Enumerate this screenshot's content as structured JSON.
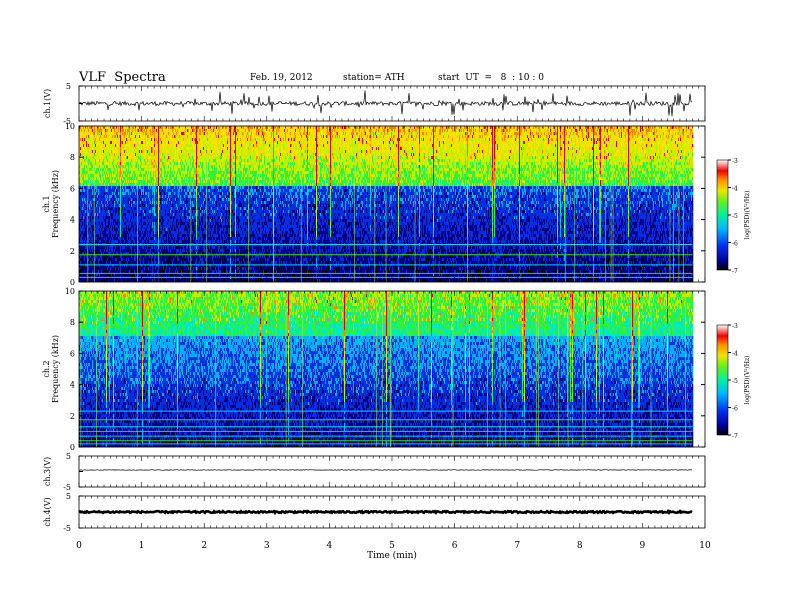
{
  "header": {
    "title": "VLF  Spectra",
    "date": "Feb. 19, 2012",
    "station": "station= ATH",
    "start": "start  UT  =   8  : 10 : 0"
  },
  "chart_data": [
    {
      "type": "line",
      "name": "ch1-waveform",
      "ylabel": "ch.1(V)",
      "ylim": [
        -5,
        5
      ],
      "ticks": [
        "5",
        "-5"
      ],
      "x_range_min": [
        0,
        9.8
      ],
      "baseline": 0,
      "trace_color": "#000000"
    },
    {
      "type": "heatmap",
      "name": "ch1-spectrogram",
      "ylabel": "ch.1\nFrequency (kHz)",
      "ylim": [
        0,
        10
      ],
      "yticks": [
        0,
        2,
        4,
        6,
        8,
        10
      ],
      "x_range_min": [
        0,
        9.8
      ],
      "colorbar": {
        "label": "log(PSD)(V²/Hz)",
        "range": [
          -7,
          -3
        ],
        "ticks": [
          "-3",
          "-4",
          "-5",
          "-6",
          "-7"
        ]
      },
      "lines_khz": [
        0.3,
        0.55,
        1.1,
        1.75,
        2.4
      ]
    },
    {
      "type": "heatmap",
      "name": "ch2-spectrogram",
      "ylabel": "ch.2\nFrequency (kHz)",
      "ylim": [
        0,
        10
      ],
      "yticks": [
        0,
        2,
        4,
        6,
        8,
        10
      ],
      "x_range_min": [
        0,
        9.8
      ],
      "colorbar": {
        "label": "log(PSD)(V²/Hz)",
        "range": [
          -7,
          -3
        ],
        "ticks": [
          "-3",
          "-4",
          "-5",
          "-6",
          "-7"
        ]
      },
      "lines_khz": [
        0.2,
        0.4,
        0.7,
        1.0,
        1.3,
        1.75,
        2.3
      ]
    },
    {
      "type": "line",
      "name": "ch3-waveform",
      "ylabel": "ch.3(V)",
      "ylim": [
        -5,
        5
      ],
      "ticks": [
        "5",
        "-5"
      ],
      "x_range_min": [
        0,
        9.8
      ],
      "baseline": 0.5
    },
    {
      "type": "line",
      "name": "ch4-waveform",
      "ylabel": "ch.4(V)",
      "ylim": [
        -5,
        5
      ],
      "ticks": [
        "5",
        "-5"
      ],
      "x_range_min": [
        0,
        9.8
      ],
      "baseline": 0
    }
  ],
  "x_axis": {
    "label": "Time  (min)",
    "ticks": [
      "0",
      "1",
      "2",
      "3",
      "4",
      "5",
      "6",
      "7",
      "8",
      "9",
      "10"
    ],
    "xlim": [
      0,
      10
    ]
  },
  "colors": {
    "colormap": [
      "#000000",
      "#000080",
      "#0030e0",
      "#00b0ff",
      "#00e8c0",
      "#30f040",
      "#c0f000",
      "#ffe000",
      "#ff8000",
      "#e00000",
      "#ffffff"
    ],
    "background": "#ffffff",
    "axis": "#000000",
    "green_line": "#30e020"
  }
}
